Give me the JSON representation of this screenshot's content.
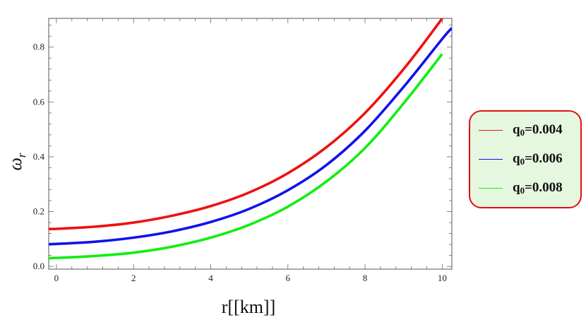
{
  "chart_data": {
    "type": "line",
    "xlabel": "r[[km]]",
    "ylabel": "ω",
    "ylabel_subscript": "r",
    "xlim": [
      -0.2,
      10.25
    ],
    "ylim": [
      -0.01,
      0.905
    ],
    "xticks": [
      0,
      2,
      4,
      6,
      8,
      10
    ],
    "xtick_labels": [
      "0",
      "2",
      "4",
      "6",
      "8",
      "10"
    ],
    "yticks": [
      0.0,
      0.2,
      0.4,
      0.6,
      0.8
    ],
    "ytick_labels": [
      "0.0",
      "0.2",
      "0.4",
      "0.6",
      "0.8"
    ],
    "grid": false,
    "legend_position": "right",
    "series": [
      {
        "name_base": "q",
        "name_sub": "0",
        "name_rest": "=0.004",
        "color": "#ee1111",
        "x": [
          -0.2,
          0,
          1,
          2,
          3,
          4,
          5,
          6,
          7,
          8,
          9,
          10,
          10.25
        ],
        "y": [
          0.137,
          0.137,
          0.145,
          0.16,
          0.185,
          0.22,
          0.27,
          0.34,
          0.435,
          0.56,
          0.72,
          0.905,
          0.96
        ]
      },
      {
        "name_base": "q",
        "name_sub": "0",
        "name_rest": "=0.006",
        "color": "#1111ee",
        "x": [
          -0.2,
          0,
          1,
          2,
          3,
          4,
          5,
          6,
          7,
          8,
          9,
          10,
          10.25
        ],
        "y": [
          0.081,
          0.082,
          0.09,
          0.105,
          0.128,
          0.162,
          0.21,
          0.278,
          0.37,
          0.495,
          0.655,
          0.83,
          0.87
        ]
      },
      {
        "name_base": "q",
        "name_sub": "0",
        "name_rest": "=0.008",
        "color": "#11ee11",
        "x": [
          -0.2,
          0,
          1,
          2,
          3,
          4,
          5,
          6,
          7,
          8,
          9,
          10
        ],
        "y": [
          0.03,
          0.031,
          0.038,
          0.05,
          0.072,
          0.105,
          0.152,
          0.218,
          0.31,
          0.432,
          0.595,
          0.775
        ]
      }
    ]
  }
}
